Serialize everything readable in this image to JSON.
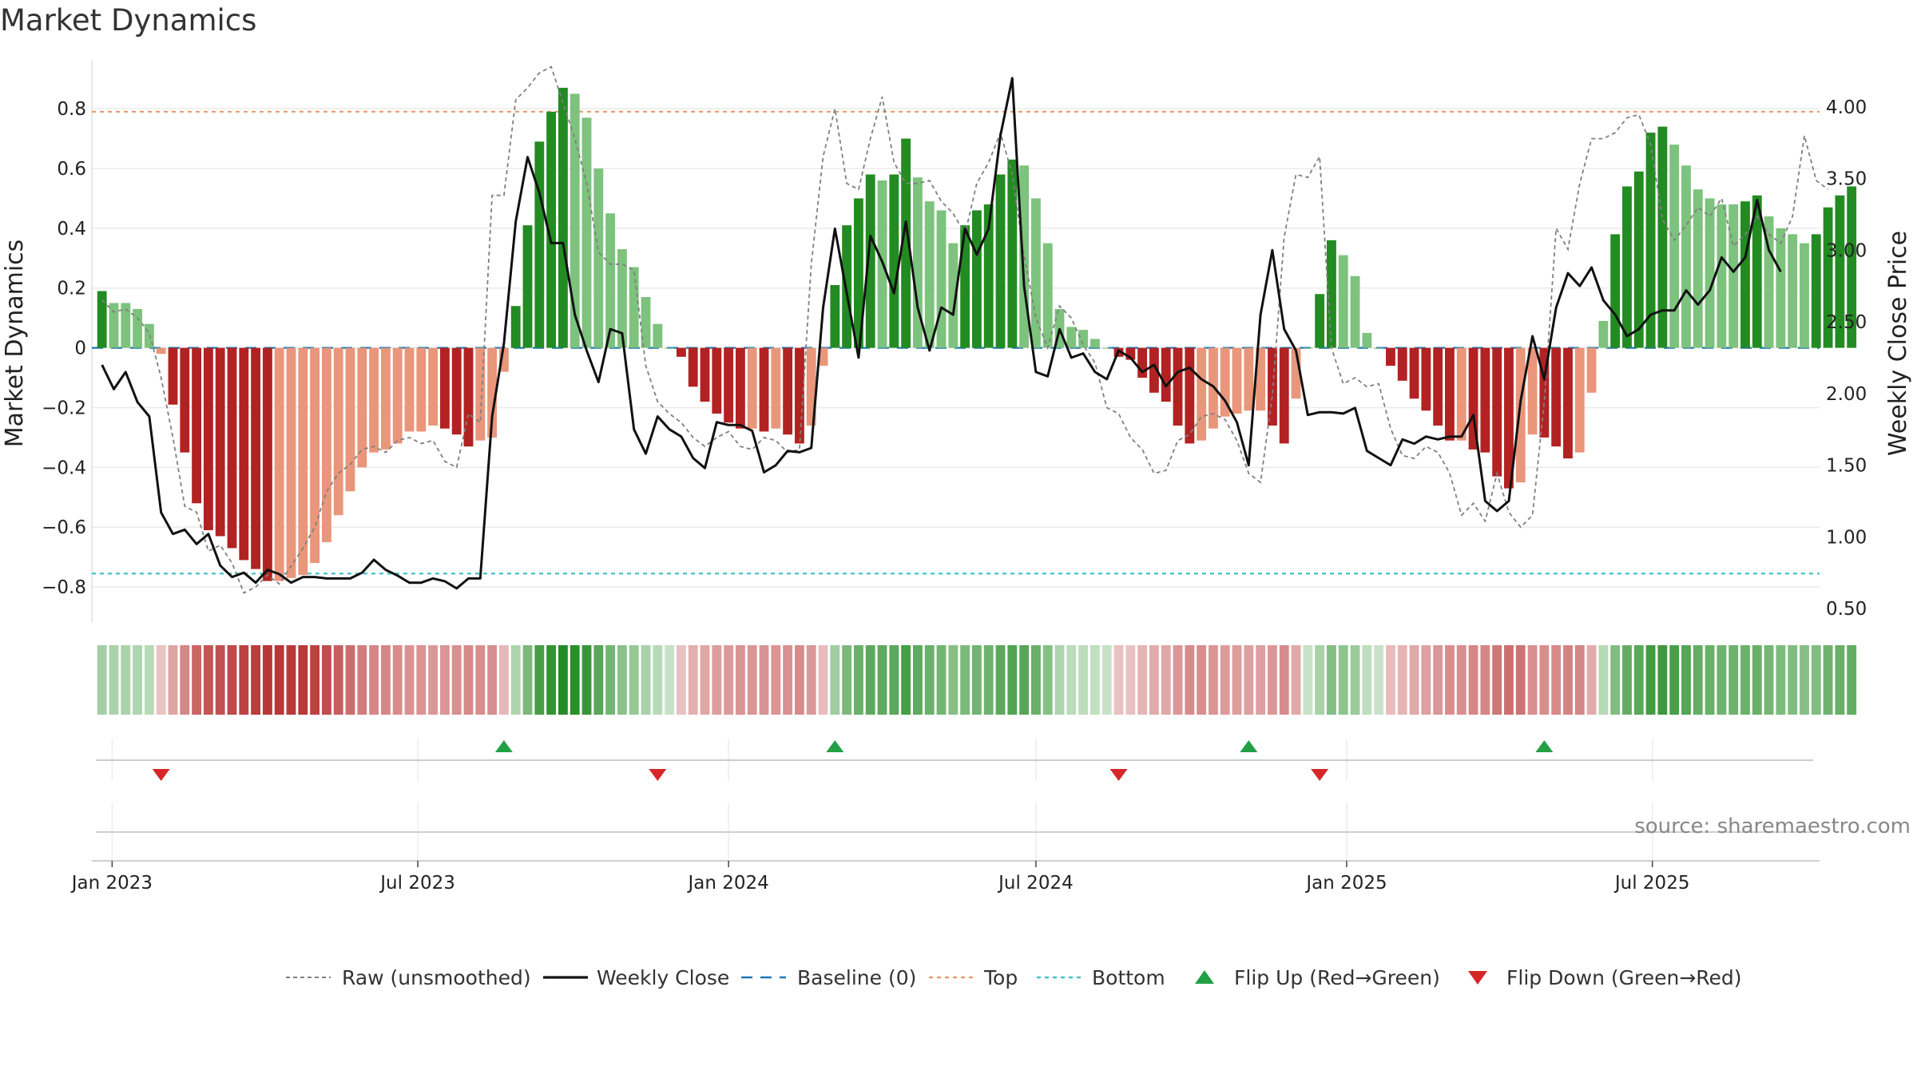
{
  "title": "Market Dynamics",
  "source": "source: sharemaestro.com",
  "chart_data": {
    "type": "bar",
    "title": "Market Dynamics",
    "ylabel_left": "Market Dynamics",
    "ylabel_right": "Weekly Close Price",
    "ylim_left": [
      -0.92,
      0.95
    ],
    "ylim_right": [
      0.4,
      4.3
    ],
    "yticks_left": [
      "0.8",
      "0.6",
      "0.4",
      "0.2",
      "0",
      "−0.2",
      "−0.4",
      "−0.6",
      "−0.8"
    ],
    "yticks_left_values": [
      0.8,
      0.6,
      0.4,
      0.2,
      0,
      -0.2,
      -0.4,
      -0.6,
      -0.8
    ],
    "yticks_right": [
      "4.00",
      "3.50",
      "3.00",
      "2.50",
      "2.00",
      "1.50",
      "1.00",
      "0.50"
    ],
    "yticks_right_values": [
      4.0,
      3.5,
      3.0,
      2.5,
      2.0,
      1.5,
      1.0,
      0.5
    ],
    "xticks": [
      "Jan 2023",
      "Jul 2023",
      "Jan 2024",
      "Jul 2024",
      "Jan 2025",
      "Jul 2025"
    ],
    "xticks_values": [
      "2023-01-01",
      "2023-07-01",
      "2024-01-01",
      "2024-07-01",
      "2025-01-01",
      "2025-07-01"
    ],
    "x_range": [
      "2022-12-20",
      "2025-10-08"
    ],
    "top_level": 0.79,
    "bottom_level": -0.755,
    "baseline": 0,
    "grid": true,
    "legend_position": "bottom",
    "colors": {
      "strong_green": "#228B22",
      "light_green": "#7DC27D",
      "strong_red": "#B22222",
      "light_red": "#E9967A",
      "close": "#111111",
      "raw": "#808080",
      "baseline": "#1f77b4",
      "top": "#E8A070",
      "bottom": "#40C4C8",
      "flip_up": "#22A045",
      "flip_down": "#D62728"
    },
    "legend": [
      {
        "label": "Raw (unsmoothed)",
        "style": "raw"
      },
      {
        "label": "Weekly Close",
        "style": "close"
      },
      {
        "label": "Baseline (0)",
        "style": "baseline"
      },
      {
        "label": "Top",
        "style": "top"
      },
      {
        "label": "Bottom",
        "style": "bottom"
      },
      {
        "label": "Flip Up (Red→Green)",
        "style": "flip_up"
      },
      {
        "label": "Flip Down (Green→Red)",
        "style": "flip_down"
      }
    ],
    "series": [
      {
        "name": "Market Dynamics",
        "start": "2022-12-26",
        "step_days": 7,
        "values": [
          0.19,
          0.15,
          0.15,
          0.13,
          0.08,
          -0.02,
          -0.19,
          -0.35,
          -0.52,
          -0.61,
          -0.63,
          -0.67,
          -0.71,
          -0.74,
          -0.78,
          -0.78,
          -0.77,
          -0.76,
          -0.72,
          -0.65,
          -0.56,
          -0.48,
          -0.4,
          -0.35,
          -0.34,
          -0.32,
          -0.28,
          -0.28,
          -0.26,
          -0.27,
          -0.29,
          -0.33,
          -0.31,
          -0.3,
          -0.08,
          0.14,
          0.41,
          0.69,
          0.79,
          0.87,
          0.85,
          0.77,
          0.6,
          0.45,
          0.33,
          0.27,
          0.17,
          0.08,
          0.0,
          -0.03,
          -0.13,
          -0.18,
          -0.22,
          -0.25,
          -0.27,
          -0.27,
          -0.28,
          -0.27,
          -0.29,
          -0.32,
          -0.26,
          -0.06,
          0.21,
          0.41,
          0.5,
          0.58,
          0.56,
          0.58,
          0.7,
          0.57,
          0.49,
          0.46,
          0.35,
          0.41,
          0.46,
          0.48,
          0.58,
          0.63,
          0.61,
          0.5,
          0.35,
          0.13,
          0.07,
          0.06,
          0.03,
          0.0,
          -0.03,
          -0.04,
          -0.1,
          -0.15,
          -0.18,
          -0.26,
          -0.32,
          -0.31,
          -0.27,
          -0.23,
          -0.22,
          -0.21,
          -0.21,
          -0.26,
          -0.32,
          -0.17,
          0.0,
          0.18,
          0.36,
          0.31,
          0.24,
          0.05,
          0.0,
          -0.06,
          -0.11,
          -0.17,
          -0.21,
          -0.26,
          -0.31,
          -0.31,
          -0.34,
          -0.35,
          -0.43,
          -0.47,
          -0.45,
          -0.29,
          -0.3,
          -0.33,
          -0.37,
          -0.35,
          -0.15,
          0.09,
          0.38,
          0.54,
          0.59,
          0.72,
          0.74,
          0.68,
          0.61,
          0.53,
          0.5,
          0.48,
          0.48,
          0.49,
          0.51,
          0.44,
          0.4,
          0.38,
          0.35,
          0.38,
          0.47,
          0.51,
          0.54
        ]
      },
      {
        "name": "Raw (unsmoothed)",
        "start": "2022-12-26",
        "step_days": 7,
        "values": [
          0.16,
          0.12,
          0.13,
          0.1,
          0.05,
          -0.1,
          -0.3,
          -0.53,
          -0.55,
          -0.68,
          -0.66,
          -0.72,
          -0.82,
          -0.8,
          -0.76,
          -0.79,
          -0.73,
          -0.67,
          -0.6,
          -0.48,
          -0.42,
          -0.39,
          -0.34,
          -0.33,
          -0.35,
          -0.31,
          -0.3,
          -0.32,
          -0.31,
          -0.38,
          -0.4,
          -0.22,
          -0.25,
          0.51,
          0.51,
          0.83,
          0.87,
          0.92,
          0.94,
          0.82,
          0.7,
          0.55,
          0.32,
          0.28,
          0.28,
          0.26,
          -0.06,
          -0.18,
          -0.22,
          -0.25,
          -0.3,
          -0.33,
          -0.3,
          -0.28,
          -0.33,
          -0.34,
          -0.3,
          -0.31,
          -0.35,
          -0.34,
          0.28,
          0.64,
          0.8,
          0.55,
          0.53,
          0.7,
          0.84,
          0.62,
          0.55,
          0.55,
          0.56,
          0.49,
          0.45,
          0.38,
          0.55,
          0.62,
          0.72,
          0.58,
          0.31,
          0.1,
          0.0,
          0.14,
          0.1,
          0.01,
          -0.05,
          -0.2,
          -0.22,
          -0.3,
          -0.34,
          -0.42,
          -0.41,
          -0.31,
          -0.29,
          -0.23,
          -0.22,
          -0.24,
          -0.31,
          -0.42,
          -0.45,
          -0.16,
          0.37,
          0.58,
          0.57,
          0.64,
          0.0,
          -0.12,
          -0.1,
          -0.13,
          -0.12,
          -0.27,
          -0.36,
          -0.37,
          -0.33,
          -0.35,
          -0.42,
          -0.56,
          -0.52,
          -0.58,
          -0.42,
          -0.55,
          -0.6,
          -0.56,
          -0.18,
          0.4,
          0.33,
          0.55,
          0.7,
          0.7,
          0.72,
          0.77,
          0.78,
          0.68,
          0.43,
          0.36,
          0.41,
          0.47,
          0.44,
          0.5,
          0.34,
          0.38,
          0.44,
          0.38,
          0.35,
          0.44,
          0.71,
          0.56,
          0.53
        ]
      },
      {
        "name": "Weekly Close",
        "start": "2022-12-26",
        "step_days": 7,
        "values": [
          2.2,
          2.03,
          2.15,
          1.94,
          1.84,
          1.17,
          1.02,
          1.05,
          0.95,
          1.02,
          0.8,
          0.72,
          0.75,
          0.68,
          0.77,
          0.74,
          0.68,
          0.72,
          0.72,
          0.71,
          0.71,
          0.71,
          0.75,
          0.84,
          0.77,
          0.73,
          0.68,
          0.68,
          0.71,
          0.69,
          0.64,
          0.71,
          0.71,
          1.84,
          2.35,
          3.2,
          3.65,
          3.4,
          3.05,
          3.05,
          2.55,
          2.3,
          2.08,
          2.45,
          2.42,
          1.75,
          1.58,
          1.84,
          1.75,
          1.7,
          1.55,
          1.48,
          1.8,
          1.78,
          1.78,
          1.74,
          1.45,
          1.5,
          1.6,
          1.59,
          1.62,
          2.6,
          3.15,
          2.7,
          2.25,
          3.1,
          2.92,
          2.7,
          3.2,
          2.6,
          2.3,
          2.6,
          2.55,
          3.15,
          2.97,
          3.15,
          3.8,
          4.2,
          2.75,
          2.15,
          2.12,
          2.45,
          2.25,
          2.28,
          2.15,
          2.1,
          2.3,
          2.25,
          2.15,
          2.2,
          2.05,
          2.15,
          2.18,
          2.1,
          2.05,
          1.95,
          1.8,
          1.5,
          2.55,
          3.0,
          2.45,
          2.3,
          1.85,
          1.87,
          1.87,
          1.86,
          1.9,
          1.6,
          1.55,
          1.5,
          1.68,
          1.65,
          1.7,
          1.68,
          1.7,
          1.7,
          1.85,
          1.25,
          1.18,
          1.25,
          1.95,
          2.4,
          2.1,
          2.6,
          2.84,
          2.75,
          2.88,
          2.65,
          2.55,
          2.4,
          2.45,
          2.55,
          2.58,
          2.58,
          2.72,
          2.62,
          2.72,
          2.95,
          2.85,
          2.95,
          3.35,
          3.0,
          2.85
        ]
      },
      {
        "name": "Flip Up (Red→Green)",
        "dates": [
          "2023-08-21",
          "2024-03-04",
          "2024-11-04",
          "2025-04-28"
        ]
      },
      {
        "name": "Flip Down (Green→Red)",
        "dates": [
          "2023-01-30",
          "2023-11-20",
          "2024-08-19",
          "2024-12-16"
        ]
      }
    ]
  }
}
